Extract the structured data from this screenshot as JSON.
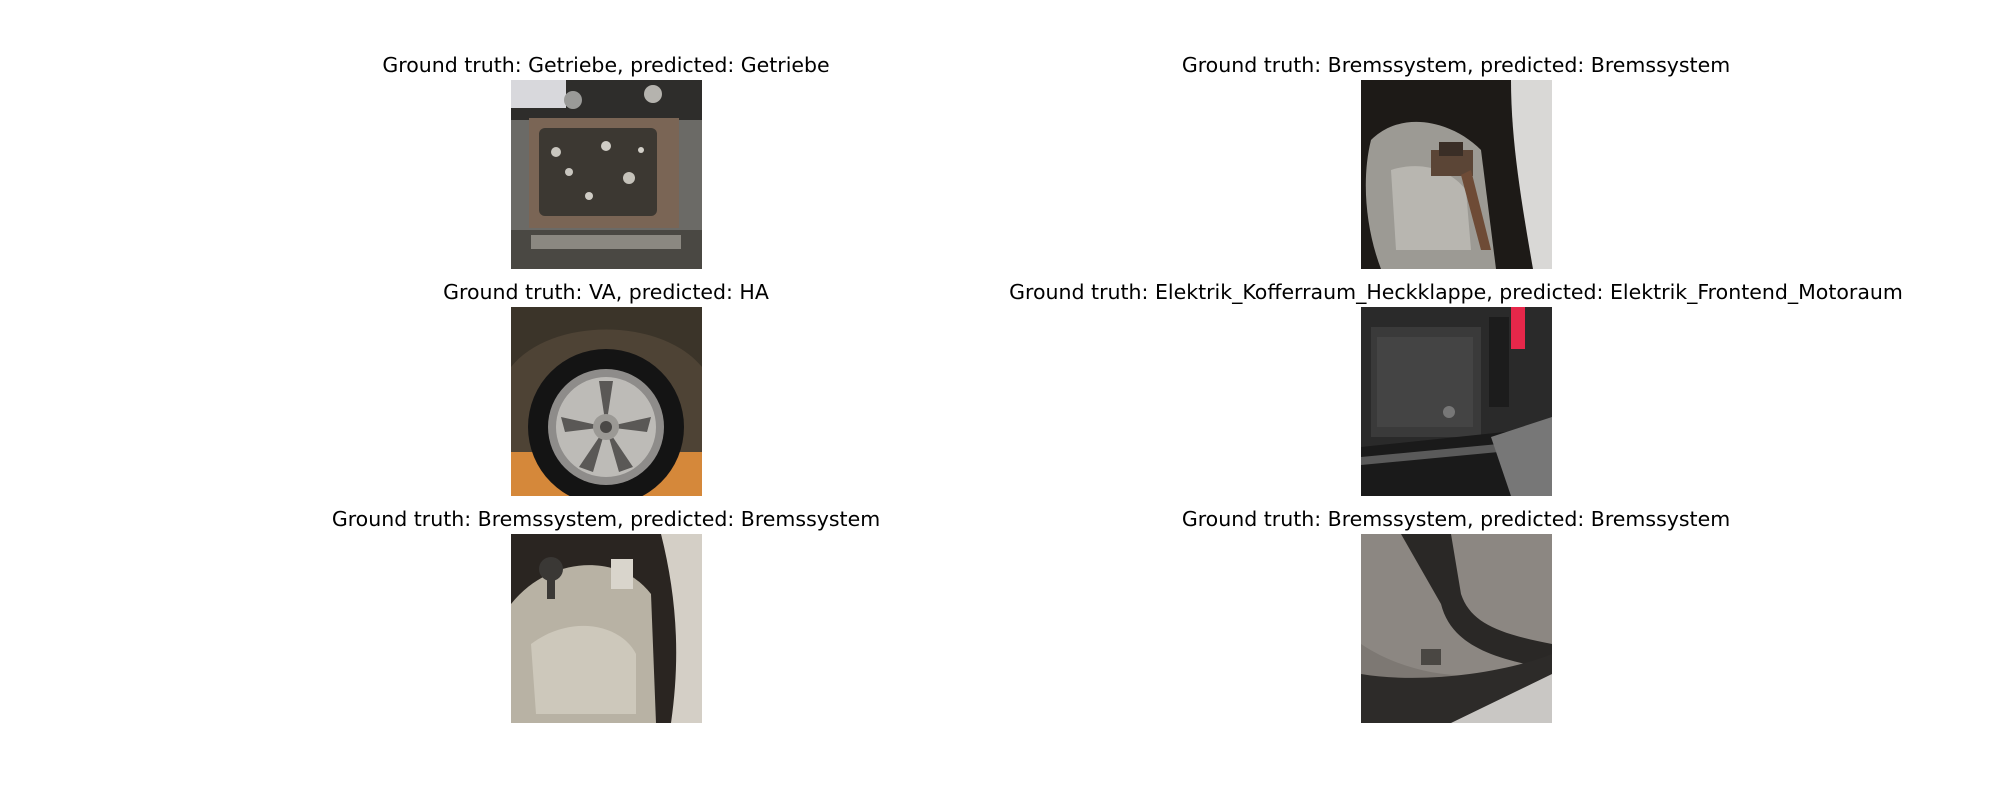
{
  "panels": [
    {
      "caption": "Ground truth: Getriebe, predicted: Getriebe",
      "scene": "transmission"
    },
    {
      "caption": "Ground truth: Bremssystem, predicted: Bremssystem",
      "scene": "brake-caliper-dark"
    },
    {
      "caption": "Ground truth: VA, predicted: HA",
      "scene": "wheel"
    },
    {
      "caption": "Ground truth: Elektrik_Kofferraum_Heckklappe, predicted: Elektrik_Frontend_Motoraum",
      "scene": "electrics-box"
    },
    {
      "caption": "Ground truth: Bremssystem, predicted: Bremssystem",
      "scene": "brake-caliper-light"
    },
    {
      "caption": "Ground truth: Bremssystem, predicted: Bremssystem",
      "scene": "brake-caliper-grey"
    }
  ]
}
